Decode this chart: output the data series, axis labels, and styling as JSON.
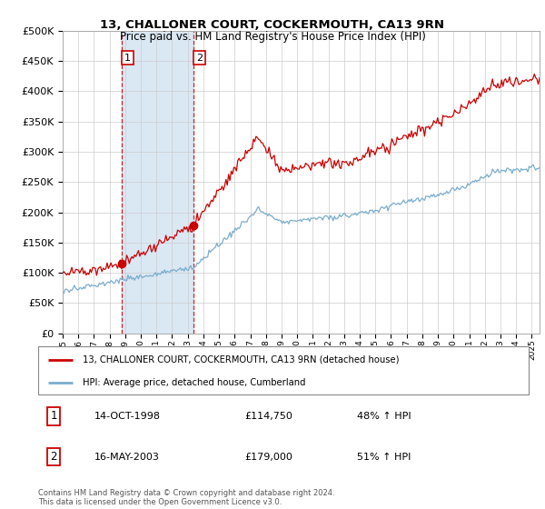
{
  "title": "13, CHALLONER COURT, COCKERMOUTH, CA13 9RN",
  "subtitle": "Price paid vs. HM Land Registry's House Price Index (HPI)",
  "legend_line1": "13, CHALLONER COURT, COCKERMOUTH, CA13 9RN (detached house)",
  "legend_line2": "HPI: Average price, detached house, Cumberland",
  "transaction1_date": "14-OCT-1998",
  "transaction1_price": "£114,750",
  "transaction1_hpi": "48% ↑ HPI",
  "transaction2_date": "16-MAY-2003",
  "transaction2_price": "£179,000",
  "transaction2_hpi": "51% ↑ HPI",
  "footnote": "Contains HM Land Registry data © Crown copyright and database right 2024.\nThis data is licensed under the Open Government Licence v3.0.",
  "red_color": "#cc0000",
  "blue_color": "#7aadcf",
  "highlight_bg": "#dae8f4",
  "ylim": [
    0,
    500000
  ],
  "year_start": 1995,
  "year_end": 2025,
  "transaction1_year": 1998.79,
  "transaction1_value": 114750,
  "transaction2_year": 2003.37,
  "transaction2_value": 179000,
  "yticks": [
    0,
    50000,
    100000,
    150000,
    200000,
    250000,
    300000,
    350000,
    400000,
    450000,
    500000
  ]
}
